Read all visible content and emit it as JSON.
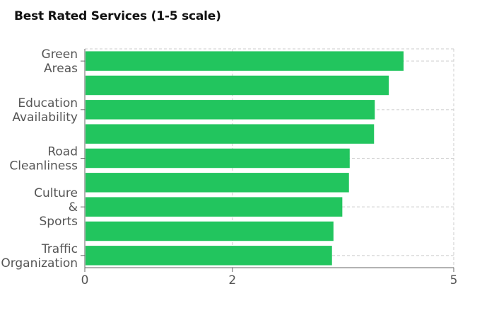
{
  "chart_data": {
    "type": "bar",
    "orientation": "horizontal",
    "title": "Best Rated Services (1-5 scale)",
    "categories": [
      "Green Areas",
      "",
      "Education Availability",
      "",
      "Road Cleanliness",
      "",
      "Culture & Sports",
      "",
      "Traffic Organization"
    ],
    "category_label_lines": [
      [
        "Green",
        "Areas"
      ],
      [],
      [
        "Education",
        "Availability"
      ],
      [],
      [
        "Road",
        "Cleanliness"
      ],
      [],
      [
        "Culture",
        "&",
        "Sports"
      ],
      [],
      [
        "Traffic",
        "Organization"
      ]
    ],
    "values": [
      4.32,
      4.12,
      3.93,
      3.92,
      3.59,
      3.58,
      3.49,
      3.37,
      3.35
    ],
    "xlim": [
      0,
      5
    ],
    "xticks": [
      0,
      2,
      5
    ],
    "xtick_labels": [
      "0",
      "2",
      "5"
    ],
    "grid": true,
    "bar_color": "#22c55e"
  }
}
